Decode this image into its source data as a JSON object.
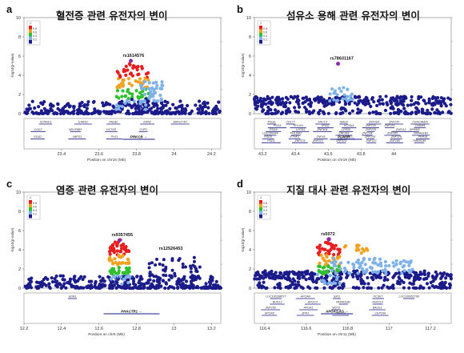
{
  "colors": {
    "r2_bins": [
      "#1b1b8a",
      "#7fb2e8",
      "#2ec02e",
      "#f2a11e",
      "#e81d1d"
    ],
    "lead": "#8e2aa6"
  },
  "legend": {
    "title": "r²",
    "ticks": [
      "0.8",
      "0.6",
      "0.4",
      "0.2"
    ]
  },
  "panels": [
    {
      "label": "a",
      "title": "혈전증 관련 유전자의 변이",
      "chart_data": {
        "type": "scatter",
        "xlabel": "Position on chr16 (Mb)",
        "ylabel": "-log10(p-value)",
        "xlim": [
          23.2,
          24.25
        ],
        "ylim": [
          0,
          10
        ],
        "xticks": [
          "23.4",
          "23.6",
          "23.8",
          "24",
          "24.2"
        ],
        "yticks": [
          "0",
          "2",
          "4",
          "6",
          "8",
          "10"
        ],
        "lead_snp": {
          "name": "rs1614576",
          "x": 23.77,
          "y": 5.5
        },
        "peaks": [
          {
            "center": 23.78,
            "max": 5.2
          }
        ],
        "genes": [
          "SCNN1G",
          "COG7",
          "GGA2",
          "EARS2",
          "NDUFAB1",
          "UBFD1",
          "PALB2",
          "DCTN5",
          "PLK1",
          "ERN2",
          "CHP2",
          "PRKCB",
          "MIR1273H"
        ],
        "highlight_gene": "PRKCB"
      }
    },
    {
      "label": "b",
      "title": "섬유소 용해 관련 유전자의 변이",
      "chart_data": {
        "type": "scatter",
        "xlabel": "Position on chr19 (Mb)",
        "ylabel": "-log10(p-value)",
        "xlim": [
          43.15,
          44.35
        ],
        "ylim": [
          0,
          10
        ],
        "xticks": [
          "43.2",
          "43.4",
          "43.6",
          "43.8",
          "44"
        ],
        "yticks": [
          "0",
          "2",
          "4",
          "6",
          "8",
          "10"
        ],
        "lead_snp": {
          "name": "rs78631167",
          "x": 43.66,
          "y": 5.2
        },
        "peaks": [],
        "genes": [
          "PSG6",
          "PSG4",
          "PSG9",
          "LOC284344",
          "PSG5",
          "PSG1",
          "CD177",
          "TEX101",
          "LYPD3",
          "PHLDB3",
          "ETHE1",
          "ZNF575",
          "XRCC1",
          "IRGQ",
          "ZNF404",
          "PLAUR",
          "ZNF45",
          "ZNF221",
          "SMG9",
          "KCNN4",
          "LYPD5",
          "ZNF283",
          "ZNF222",
          "ZNF223",
          "ZNF284",
          "ZNF224",
          "ZNF225",
          "ZNF234",
          "ZNF226",
          "ZNF227",
          "ZNF235",
          "ZNF233",
          "ZNF112",
          "ZNF285",
          "ZNF229",
          "ZNF180",
          "CEACAM20",
          "CADM4",
          "SRRM5",
          "PAFAH1B3",
          "PRR19",
          "TMEM145"
        ],
        "highlight_gene": "PLAUR"
      }
    },
    {
      "label": "c",
      "title": "염증 관련 유전자의 변이",
      "chart_data": {
        "type": "scatter",
        "xlabel": "Position on chr6 (Mb)",
        "ylabel": "-log10(p-value)",
        "xlim": [
          12.2,
          13.25
        ],
        "ylim": [
          0,
          10
        ],
        "xticks": [
          "12.2",
          "12.4",
          "12.6",
          "12.8",
          "13",
          "13.2"
        ],
        "yticks": [
          "0",
          "2",
          "4",
          "6",
          "8",
          "10"
        ],
        "lead_snp": {
          "name": "rs9357455",
          "x": 12.71,
          "y": 5.0
        },
        "second_snp": {
          "name": "rs12526453",
          "x": 12.92,
          "y": 3.6
        },
        "peaks": [
          {
            "center": 12.71,
            "max": 4.8
          }
        ],
        "genes": [
          "EDN1",
          "PHACTR1"
        ],
        "highlight_gene": "PHACTR1"
      }
    },
    {
      "label": "d",
      "title": "지질 대사 관련 유전자의 변이",
      "chart_data": {
        "type": "scatter",
        "xlabel": "Position on chr11 (Mb)",
        "ylabel": "-log10(p-value)",
        "xlim": [
          116.35,
          117.3
        ],
        "ylim": [
          0,
          10
        ],
        "xticks": [
          "116.4",
          "116.6",
          "116.8",
          "117",
          "117.2"
        ],
        "yticks": [
          "0",
          "2",
          "4",
          "6",
          "8",
          "10"
        ],
        "lead_snp": {
          "name": "rs5072",
          "x": 116.71,
          "y": 5.1
        },
        "peaks": [
          {
            "center": 116.71,
            "max": 4.8
          }
        ],
        "genes": [
          "LOC100288077",
          "BUD13",
          "ZNF259",
          "APOA5",
          "APOA4",
          "APOC3",
          "APOA1",
          "ZPR1",
          "SIK3",
          "PAFAH1B2",
          "SIDT2",
          "TAGLN",
          "PCSK7",
          "RNF214",
          "BACE1",
          "CEP164",
          "LOC100652768",
          "APOA1-AS"
        ],
        "highlight_gene": "APOA1-AS"
      }
    }
  ]
}
